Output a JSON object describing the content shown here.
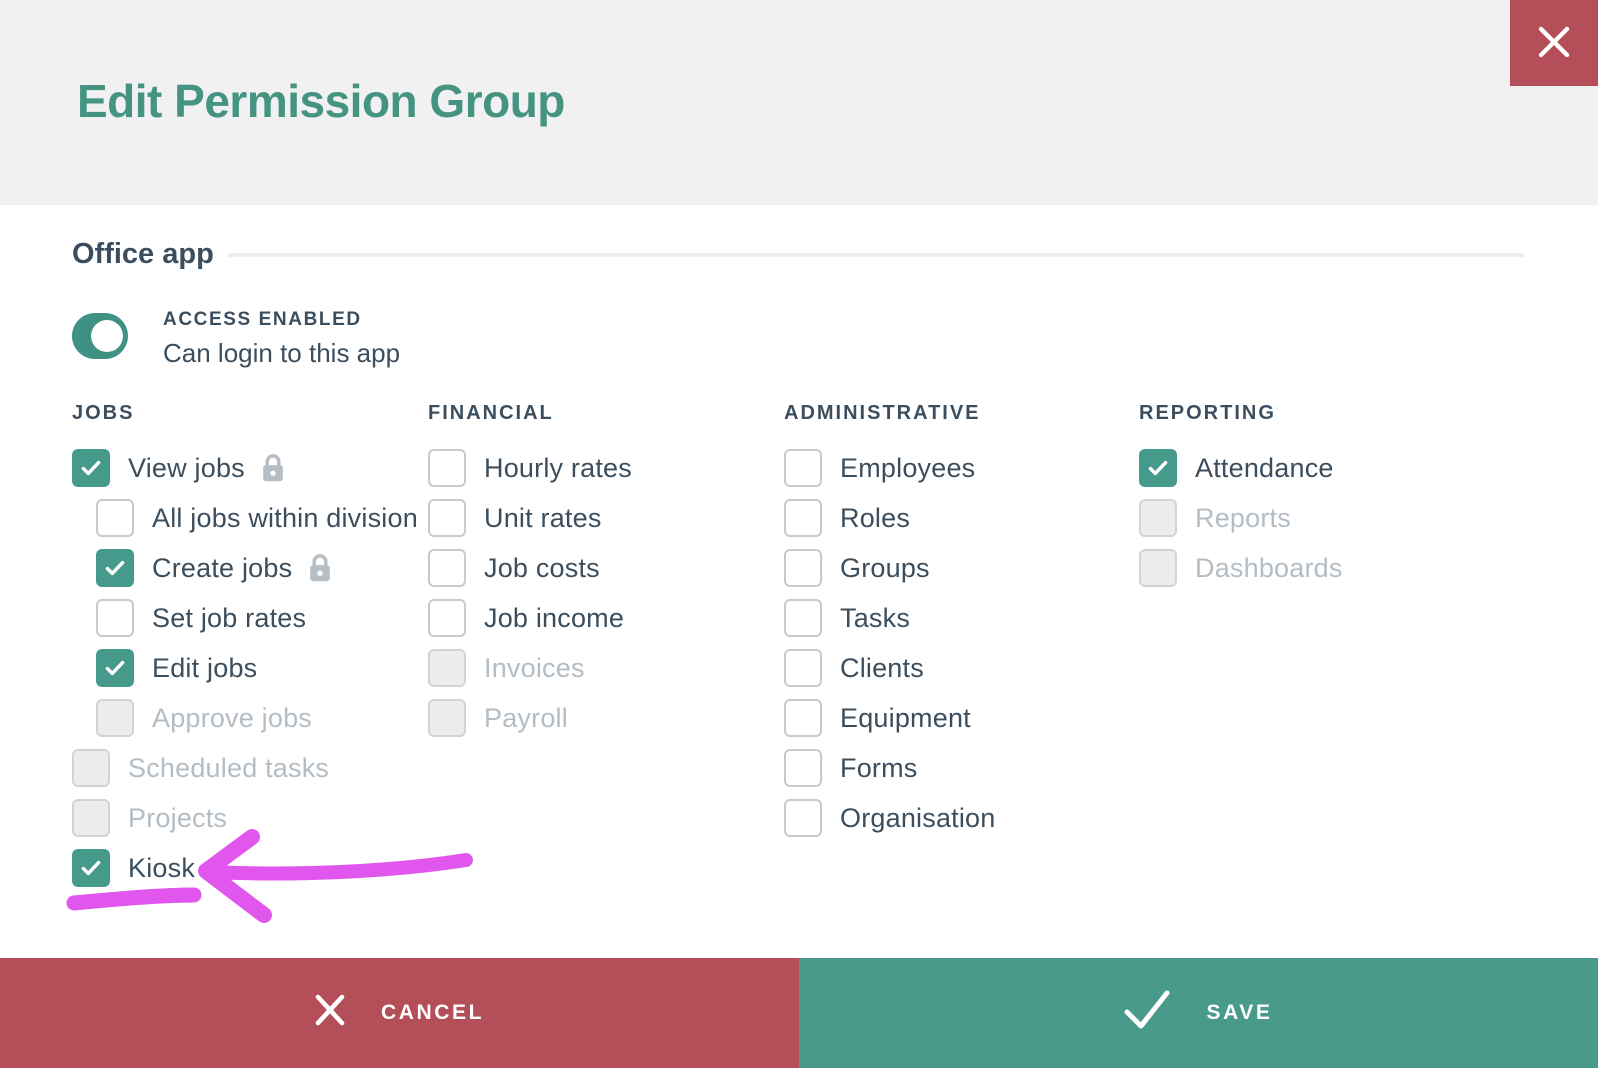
{
  "modal": {
    "title": "Edit Permission Group"
  },
  "section": {
    "title": "Office app",
    "toggle": {
      "state": "on",
      "label": "ACCESS ENABLED",
      "description": "Can login to this app"
    }
  },
  "columns": [
    {
      "header": "JOBS",
      "items": [
        {
          "label": "View jobs",
          "state": "checked",
          "icon": "lock",
          "indent": 0
        },
        {
          "label": "All jobs within division",
          "state": "unchecked",
          "icon": "info",
          "indent": 1
        },
        {
          "label": "Create jobs",
          "state": "checked",
          "icon": "lock",
          "indent": 1
        },
        {
          "label": "Set job rates",
          "state": "unchecked",
          "icon": null,
          "indent": 1
        },
        {
          "label": "Edit jobs",
          "state": "checked",
          "icon": null,
          "indent": 1
        },
        {
          "label": "Approve jobs",
          "state": "disabled",
          "icon": null,
          "indent": 1
        },
        {
          "label": "Scheduled tasks",
          "state": "disabled",
          "icon": null,
          "indent": 0
        },
        {
          "label": "Projects",
          "state": "disabled",
          "icon": null,
          "indent": 0
        },
        {
          "label": "Kiosk",
          "state": "checked",
          "icon": null,
          "indent": 0
        }
      ]
    },
    {
      "header": "FINANCIAL",
      "items": [
        {
          "label": "Hourly rates",
          "state": "unchecked",
          "icon": null,
          "indent": 0
        },
        {
          "label": "Unit rates",
          "state": "unchecked",
          "icon": null,
          "indent": 0
        },
        {
          "label": "Job costs",
          "state": "unchecked",
          "icon": null,
          "indent": 0
        },
        {
          "label": "Job income",
          "state": "unchecked",
          "icon": null,
          "indent": 0
        },
        {
          "label": "Invoices",
          "state": "disabled",
          "icon": null,
          "indent": 0
        },
        {
          "label": "Payroll",
          "state": "disabled",
          "icon": null,
          "indent": 0
        }
      ]
    },
    {
      "header": "ADMINISTRATIVE",
      "items": [
        {
          "label": "Employees",
          "state": "unchecked",
          "icon": null,
          "indent": 0
        },
        {
          "label": "Roles",
          "state": "unchecked",
          "icon": null,
          "indent": 0
        },
        {
          "label": "Groups",
          "state": "unchecked",
          "icon": null,
          "indent": 0
        },
        {
          "label": "Tasks",
          "state": "unchecked",
          "icon": null,
          "indent": 0
        },
        {
          "label": "Clients",
          "state": "unchecked",
          "icon": null,
          "indent": 0
        },
        {
          "label": "Equipment",
          "state": "unchecked",
          "icon": null,
          "indent": 0
        },
        {
          "label": "Forms",
          "state": "unchecked",
          "icon": null,
          "indent": 0
        },
        {
          "label": "Organisation",
          "state": "unchecked",
          "icon": null,
          "indent": 0
        }
      ]
    },
    {
      "header": "REPORTING",
      "items": [
        {
          "label": "Attendance",
          "state": "checked",
          "icon": null,
          "indent": 0
        },
        {
          "label": "Reports",
          "state": "disabled",
          "icon": null,
          "indent": 0
        },
        {
          "label": "Dashboards",
          "state": "disabled",
          "icon": null,
          "indent": 0
        }
      ]
    }
  ],
  "annotation": {
    "type": "hand-drawn-arrow",
    "points_to": "Kiosk",
    "color": "#e156ec"
  },
  "footer": {
    "cancel_label": "CANCEL",
    "save_label": "SAVE"
  },
  "colors": {
    "accent_green": "#459a8b",
    "title_green": "#459482",
    "danger_red": "#b44e58",
    "text_dark": "#3c4e5d",
    "muted_gray": "#b6bec5",
    "header_bg": "#f1f1f1"
  }
}
